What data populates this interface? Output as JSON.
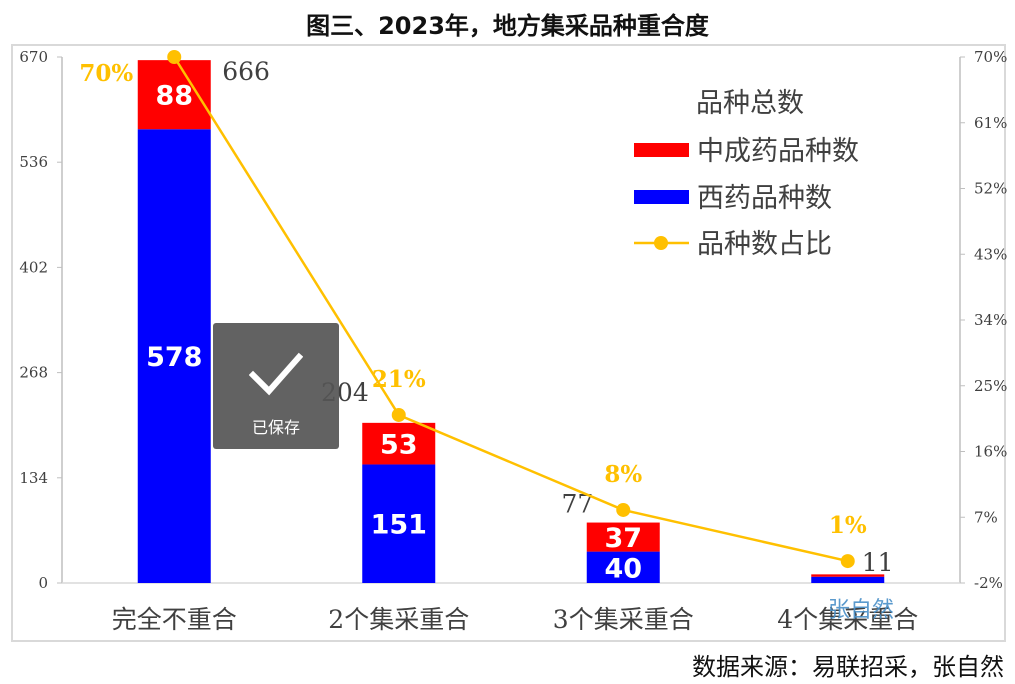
{
  "title": "图三、2023年，地方集采品种重合度",
  "source": "数据来源：易联招采，张自然",
  "watermark": "张自然",
  "saved_toast": {
    "label": "已保存",
    "icon": "checkmark-icon"
  },
  "colors": {
    "tcm": "#ff0000",
    "western": "#0000ff",
    "ratio": "#ffc000",
    "axis_text": "#404040"
  },
  "chart_data": {
    "type": "bar",
    "stacked": true,
    "categories": [
      "完全不重合",
      "2个集采重合",
      "3个集采重合",
      "4个集采重合"
    ],
    "series": [
      {
        "name": "西药品种数",
        "type": "bar",
        "values": [
          578,
          151,
          40,
          8
        ]
      },
      {
        "name": "中成药品种数",
        "type": "bar",
        "values": [
          88,
          53,
          37,
          3
        ]
      },
      {
        "name": "品种数占比",
        "type": "line",
        "axis": "right",
        "values": [
          70,
          21,
          8,
          1
        ]
      }
    ],
    "totals": [
      666,
      204,
      77,
      11
    ],
    "bar_labels": {
      "western": [
        "578",
        "151",
        "40",
        ""
      ],
      "tcm": [
        "88",
        "53",
        "37",
        ""
      ],
      "ratio": [
        "70%",
        "21%",
        "8%",
        "1%"
      ],
      "totals": [
        "666",
        "204",
        "77",
        "11"
      ]
    },
    "legend_title": "品种总数",
    "legend": [
      "中成药品种数",
      "西药品种数",
      "品种数占比"
    ],
    "ylim": [
      0,
      670
    ],
    "yticks": [
      0,
      134,
      268,
      402,
      536,
      670
    ],
    "ylim_right": [
      -2,
      70
    ],
    "yticks_right": [
      "-2%",
      "7%",
      "16%",
      "25%",
      "34%",
      "43%",
      "52%",
      "61%",
      "70%"
    ],
    "grid": false
  }
}
